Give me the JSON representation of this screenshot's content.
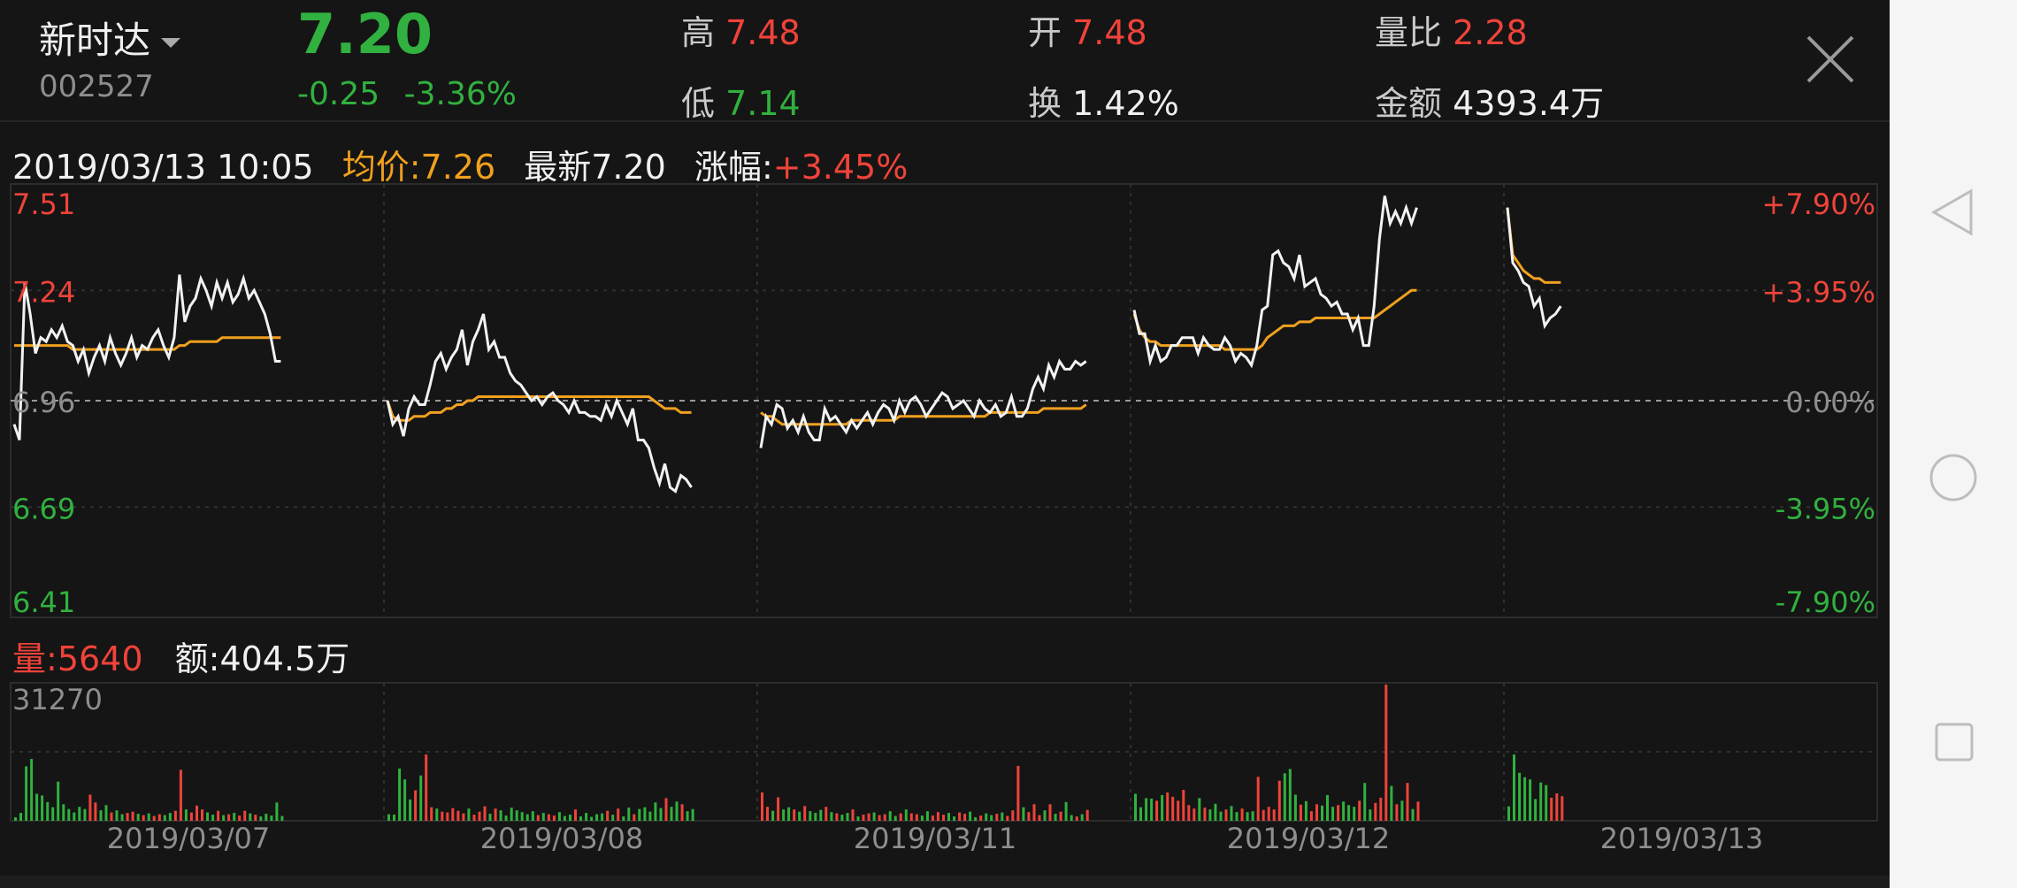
{
  "header": {
    "stock_name": "新时达",
    "stock_code": "002527",
    "price": "7.20",
    "change": "-0.25",
    "change_pct": "-3.36%",
    "stats": [
      {
        "label": "高",
        "value": "7.48",
        "color": "red"
      },
      {
        "label": "开",
        "value": "7.48",
        "color": "red"
      },
      {
        "label": "量比",
        "value": "2.28",
        "color": "red"
      },
      {
        "label": "低",
        "value": "7.14",
        "color": "green"
      },
      {
        "label": "换",
        "value": "1.42%",
        "color": "white"
      },
      {
        "label": "金额",
        "value": "4393.4万",
        "color": "white"
      }
    ]
  },
  "info_bar": {
    "datetime": "2019/03/13 10:05",
    "avg_label": "均价:",
    "avg_value": "7.26",
    "latest_label": "最新",
    "latest_value": "7.20",
    "change_label": "涨幅:",
    "change_value": "+3.45%"
  },
  "volume_bar": {
    "vol_label": "量:",
    "vol_value": "5640",
    "amount_label": "额:",
    "amount_value": "404.5万"
  },
  "colors": {
    "up": "#f0433a",
    "down": "#31b13f",
    "avg_line": "#f0a01e",
    "price_line": "#f2f2f2",
    "background": "#151515"
  },
  "icons": {
    "close": "close-icon",
    "back": "back-triangle-icon",
    "home": "home-circle-icon",
    "recent": "recent-square-icon"
  },
  "chart_data": {
    "type": "line",
    "title": "",
    "ylim": [
      6.41,
      7.51
    ],
    "y_ticks_left": [
      "7.51",
      "7.24",
      "6.96",
      "6.69",
      "6.41"
    ],
    "y_ticks_right": [
      "+7.90%",
      "+3.95%",
      "0.00%",
      "-3.95%",
      "-7.90%"
    ],
    "baseline": 6.96,
    "x_labels": [
      "2019/03/07",
      "2019/03/08",
      "2019/03/11",
      "2019/03/12",
      "2019/03/13"
    ],
    "grid": true,
    "days": [
      {
        "date": "2019/03/07",
        "price": [
          6.9,
          6.86,
          7.26,
          7.18,
          7.08,
          7.12,
          7.11,
          7.14,
          7.12,
          7.15,
          7.11,
          7.1,
          7.06,
          7.09,
          7.03,
          7.07,
          7.1,
          7.06,
          7.12,
          7.08,
          7.05,
          7.08,
          7.12,
          7.07,
          7.1,
          7.09,
          7.12,
          7.14,
          7.1,
          7.07,
          7.12,
          7.28,
          7.16,
          7.2,
          7.22,
          7.27,
          7.24,
          7.2,
          7.26,
          7.22,
          7.26,
          7.21,
          7.23,
          7.27,
          7.22,
          7.24,
          7.21,
          7.18,
          7.13,
          7.06,
          7.06
        ],
        "avg": [
          7.1,
          7.1,
          7.1,
          7.1,
          7.1,
          7.1,
          7.1,
          7.1,
          7.1,
          7.1,
          7.1,
          7.09,
          7.09,
          7.09,
          7.09,
          7.09,
          7.09,
          7.09,
          7.09,
          7.09,
          7.09,
          7.09,
          7.09,
          7.09,
          7.09,
          7.09,
          7.09,
          7.09,
          7.09,
          7.09,
          7.09,
          7.1,
          7.1,
          7.11,
          7.11,
          7.11,
          7.11,
          7.11,
          7.11,
          7.12,
          7.12,
          7.12,
          7.12,
          7.12,
          7.12,
          7.12,
          7.12,
          7.12,
          7.12,
          7.12,
          7.12
        ],
        "volume": [
          800,
          1800,
          12500,
          14200,
          6200,
          5800,
          4300,
          3100,
          9000,
          3800,
          2700,
          1900,
          3200,
          2700,
          6000,
          4200,
          2400,
          3600,
          1900,
          2400,
          1500,
          1800,
          2100,
          1600,
          1300,
          1700,
          1100,
          1500,
          1300,
          1800,
          2300,
          11700,
          2600,
          1900,
          3500,
          2600,
          1900,
          1400,
          2300,
          1300,
          1500,
          1800,
          1200,
          2300,
          1700,
          1400,
          1000,
          1600,
          1200,
          4200,
          1100
        ],
        "up": [
          0,
          0,
          0,
          0,
          0,
          0,
          0,
          0,
          0,
          0,
          0,
          0,
          0,
          0,
          1,
          1,
          0,
          0,
          1,
          0,
          0,
          1,
          1,
          0,
          1,
          0,
          1,
          1,
          0,
          0,
          1,
          1,
          0,
          1,
          1,
          1,
          0,
          0,
          1,
          0,
          1,
          0,
          1,
          1,
          0,
          1,
          0,
          0,
          0,
          0,
          0
        ]
      },
      {
        "date": "2019/03/08",
        "price": [
          6.96,
          6.9,
          6.92,
          6.87,
          6.94,
          6.97,
          6.95,
          6.95,
          7.0,
          7.06,
          7.08,
          7.04,
          7.07,
          7.09,
          7.14,
          7.05,
          7.11,
          7.14,
          7.18,
          7.09,
          7.11,
          7.07,
          7.07,
          7.03,
          7.01,
          7.0,
          6.98,
          6.96,
          6.97,
          6.95,
          6.97,
          6.98,
          6.96,
          6.95,
          6.93,
          6.96,
          6.93,
          6.93,
          6.92,
          6.92,
          6.91,
          6.95,
          6.92,
          6.96,
          6.93,
          6.9,
          6.94,
          6.86,
          6.86,
          6.84,
          6.79,
          6.75,
          6.8,
          6.74,
          6.73,
          6.77,
          6.76,
          6.74
        ],
        "avg": [
          6.96,
          6.92,
          6.91,
          6.91,
          6.91,
          6.92,
          6.92,
          6.92,
          6.93,
          6.93,
          6.93,
          6.94,
          6.94,
          6.95,
          6.95,
          6.96,
          6.96,
          6.97,
          6.97,
          6.97,
          6.97,
          6.97,
          6.97,
          6.97,
          6.97,
          6.97,
          6.97,
          6.97,
          6.97,
          6.97,
          6.97,
          6.97,
          6.97,
          6.97,
          6.97,
          6.97,
          6.97,
          6.97,
          6.97,
          6.97,
          6.97,
          6.97,
          6.97,
          6.97,
          6.97,
          6.97,
          6.97,
          6.97,
          6.97,
          6.97,
          6.96,
          6.95,
          6.94,
          6.94,
          6.94,
          6.93,
          6.93,
          6.93
        ],
        "volume": [
          1500,
          1400,
          12000,
          9500,
          4900,
          7000,
          10400,
          15200,
          3100,
          2800,
          2100,
          1900,
          2900,
          2300,
          1700,
          2800,
          1400,
          2100,
          3300,
          1600,
          2800,
          2400,
          1200,
          3000,
          2400,
          2000,
          1500,
          2200,
          1300,
          1800,
          1500,
          1200,
          2000,
          1100,
          1400,
          2600,
          1000,
          1800,
          900,
          1500,
          1700,
          2300,
          1400,
          2800,
          1000,
          3000,
          1500,
          2700,
          3100,
          2100,
          4200,
          2900,
          5200,
          3200,
          4400,
          3800,
          2200,
          2700
        ],
        "up": [
          0,
          0,
          0,
          0,
          0,
          1,
          0,
          1,
          1,
          0,
          1,
          1,
          1,
          1,
          1,
          0,
          1,
          1,
          1,
          0,
          1,
          0,
          0,
          0,
          0,
          0,
          0,
          0,
          1,
          0,
          1,
          1,
          0,
          0,
          0,
          1,
          0,
          0,
          0,
          0,
          0,
          1,
          0,
          1,
          0,
          0,
          1,
          0,
          0,
          0,
          0,
          0,
          1,
          0,
          0,
          1,
          0,
          0
        ]
      },
      {
        "date": "2019/03/11",
        "price": [
          6.84,
          6.92,
          6.9,
          6.95,
          6.94,
          6.89,
          6.91,
          6.88,
          6.92,
          6.88,
          6.86,
          6.86,
          6.94,
          6.91,
          6.92,
          6.9,
          6.88,
          6.91,
          6.89,
          6.91,
          6.93,
          6.9,
          6.93,
          6.95,
          6.94,
          6.91,
          6.96,
          6.93,
          6.96,
          6.97,
          6.95,
          6.92,
          6.94,
          6.96,
          6.98,
          6.97,
          6.94,
          6.95,
          6.96,
          6.94,
          6.92,
          6.96,
          6.94,
          6.93,
          6.95,
          6.92,
          6.93,
          6.97,
          6.92,
          6.92,
          6.94,
          6.99,
          7.02,
          6.99,
          7.05,
          7.02,
          7.06,
          7.04,
          7.04,
          7.06,
          7.05,
          7.06
        ],
        "avg": [
          6.93,
          6.92,
          6.92,
          6.91,
          6.9,
          6.9,
          6.9,
          6.9,
          6.9,
          6.9,
          6.9,
          6.9,
          6.9,
          6.9,
          6.9,
          6.9,
          6.9,
          6.91,
          6.91,
          6.91,
          6.91,
          6.91,
          6.91,
          6.91,
          6.91,
          6.91,
          6.92,
          6.92,
          6.92,
          6.92,
          6.92,
          6.92,
          6.92,
          6.92,
          6.92,
          6.92,
          6.92,
          6.92,
          6.92,
          6.92,
          6.92,
          6.92,
          6.92,
          6.93,
          6.93,
          6.93,
          6.93,
          6.93,
          6.93,
          6.93,
          6.93,
          6.93,
          6.93,
          6.94,
          6.94,
          6.94,
          6.94,
          6.94,
          6.94,
          6.94,
          6.94,
          6.95
        ],
        "volume": [
          6500,
          3200,
          2300,
          5400,
          2600,
          3100,
          2600,
          2100,
          3400,
          2200,
          1800,
          2500,
          3200,
          2000,
          1700,
          1400,
          1800,
          2600,
          1000,
          1400,
          1700,
          1900,
          1300,
          1500,
          2200,
          1100,
          1700,
          2600,
          1700,
          1500,
          1200,
          2200,
          1200,
          2000,
          1400,
          1800,
          1000,
          1900,
          1600,
          2100,
          800,
          1200,
          1700,
          1300,
          1600,
          1900,
          1100,
          2400,
          12600,
          3100,
          2000,
          3800,
          1300,
          2400,
          3800,
          1600,
          2100,
          4300,
          1300,
          1000,
          1500,
          2500
        ],
        "up": [
          1,
          1,
          0,
          1,
          0,
          0,
          1,
          0,
          1,
          0,
          0,
          0,
          1,
          0,
          1,
          0,
          0,
          1,
          0,
          1,
          1,
          0,
          1,
          1,
          0,
          0,
          1,
          0,
          1,
          1,
          0,
          0,
          1,
          1,
          1,
          0,
          0,
          1,
          1,
          0,
          0,
          1,
          0,
          0,
          1,
          0,
          1,
          1,
          1,
          0,
          1,
          1,
          1,
          0,
          1,
          0,
          1,
          0,
          0,
          1,
          0,
          1
        ]
      },
      {
        "date": "2019/03/12",
        "price": [
          7.19,
          7.13,
          7.13,
          7.06,
          7.1,
          7.06,
          7.07,
          7.1,
          7.1,
          7.12,
          7.12,
          7.12,
          7.08,
          7.12,
          7.1,
          7.09,
          7.09,
          7.12,
          7.1,
          7.06,
          7.08,
          7.07,
          7.05,
          7.1,
          7.19,
          7.2,
          7.33,
          7.34,
          7.31,
          7.3,
          7.27,
          7.33,
          7.25,
          7.26,
          7.27,
          7.23,
          7.22,
          7.2,
          7.21,
          7.18,
          7.18,
          7.14,
          7.17,
          7.1,
          7.1,
          7.2,
          7.37,
          7.48,
          7.41,
          7.44,
          7.41,
          7.45,
          7.41,
          7.45
        ],
        "avg": [
          7.18,
          7.14,
          7.12,
          7.11,
          7.11,
          7.1,
          7.1,
          7.1,
          7.1,
          7.1,
          7.1,
          7.1,
          7.1,
          7.1,
          7.1,
          7.1,
          7.1,
          7.09,
          7.09,
          7.09,
          7.09,
          7.09,
          7.09,
          7.09,
          7.1,
          7.12,
          7.13,
          7.14,
          7.15,
          7.15,
          7.15,
          7.16,
          7.16,
          7.16,
          7.17,
          7.17,
          7.17,
          7.17,
          7.17,
          7.17,
          7.17,
          7.17,
          7.17,
          7.17,
          7.17,
          7.17,
          7.18,
          7.19,
          7.2,
          7.21,
          7.22,
          7.23,
          7.24,
          7.24
        ],
        "volume": [
          6200,
          3100,
          5200,
          5100,
          4600,
          5900,
          6500,
          5500,
          4600,
          7100,
          3600,
          2800,
          5200,
          3000,
          2600,
          3900,
          2100,
          2600,
          3400,
          2000,
          2800,
          2000,
          2200,
          10100,
          2500,
          3200,
          2600,
          9200,
          10900,
          11900,
          6000,
          3700,
          4500,
          2200,
          3800,
          3500,
          5900,
          3200,
          3600,
          4400,
          3600,
          3200,
          4600,
          8700,
          2600,
          4100,
          5300,
          31270,
          8000,
          3800,
          4600,
          8700,
          2700,
          4400
        ],
        "up": [
          0,
          0,
          0,
          0,
          1,
          0,
          1,
          1,
          1,
          1,
          1,
          1,
          0,
          1,
          0,
          0,
          0,
          1,
          0,
          0,
          1,
          0,
          0,
          1,
          1,
          1,
          1,
          1,
          0,
          0,
          0,
          1,
          0,
          1,
          1,
          0,
          0,
          0,
          1,
          0,
          0,
          0,
          1,
          0,
          0,
          1,
          1,
          1,
          0,
          1,
          0,
          1,
          0,
          1
        ]
      },
      {
        "date": "2019/03/13",
        "price": [
          7.45,
          7.31,
          7.29,
          7.26,
          7.25,
          7.2,
          7.22,
          7.15,
          7.17,
          7.18,
          7.2
        ],
        "avg": [
          7.45,
          7.33,
          7.31,
          7.29,
          7.28,
          7.27,
          7.27,
          7.26,
          7.26,
          7.26,
          7.26
        ],
        "volume": [
          3300,
          15200,
          11000,
          10000,
          9500,
          5000,
          8800,
          8200,
          5300,
          6300,
          5640
        ],
        "up": [
          0,
          0,
          0,
          0,
          0,
          0,
          0,
          0,
          1,
          1,
          1
        ]
      }
    ],
    "volume": {
      "max_label": "31270",
      "max": 31270
    }
  }
}
